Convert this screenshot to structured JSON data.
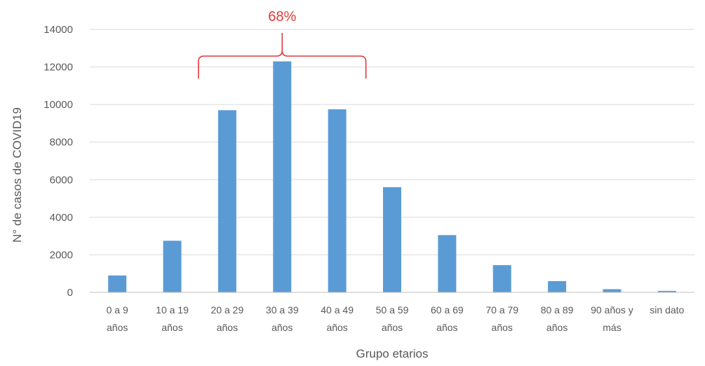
{
  "chart_data": {
    "type": "bar",
    "categories": [
      [
        "0 a 9",
        "años"
      ],
      [
        "10 a 19",
        "años"
      ],
      [
        "20 a 29",
        "años"
      ],
      [
        "30 a 39",
        "años"
      ],
      [
        "40 a 49",
        "años"
      ],
      [
        "50 a 59",
        "años"
      ],
      [
        "60 a 69",
        "años"
      ],
      [
        "70 a 79",
        "años"
      ],
      [
        "80 a 89",
        "años"
      ],
      [
        "90 años y",
        "más"
      ],
      [
        "sin dato"
      ]
    ],
    "values": [
      900,
      2750,
      9700,
      12300,
      9750,
      5600,
      3050,
      1450,
      600,
      170,
      80
    ],
    "xlabel": "Grupo etarios",
    "ylabel": "N° de casos de COVID19",
    "ylim": [
      0,
      14000
    ],
    "yticks": [
      0,
      2000,
      4000,
      6000,
      8000,
      10000,
      12000,
      14000
    ],
    "grid": true,
    "bar_color": "#5b9bd5",
    "annotation": {
      "text": "68%",
      "color": "#e03a3a",
      "spans_categories": [
        2,
        4
      ]
    }
  }
}
